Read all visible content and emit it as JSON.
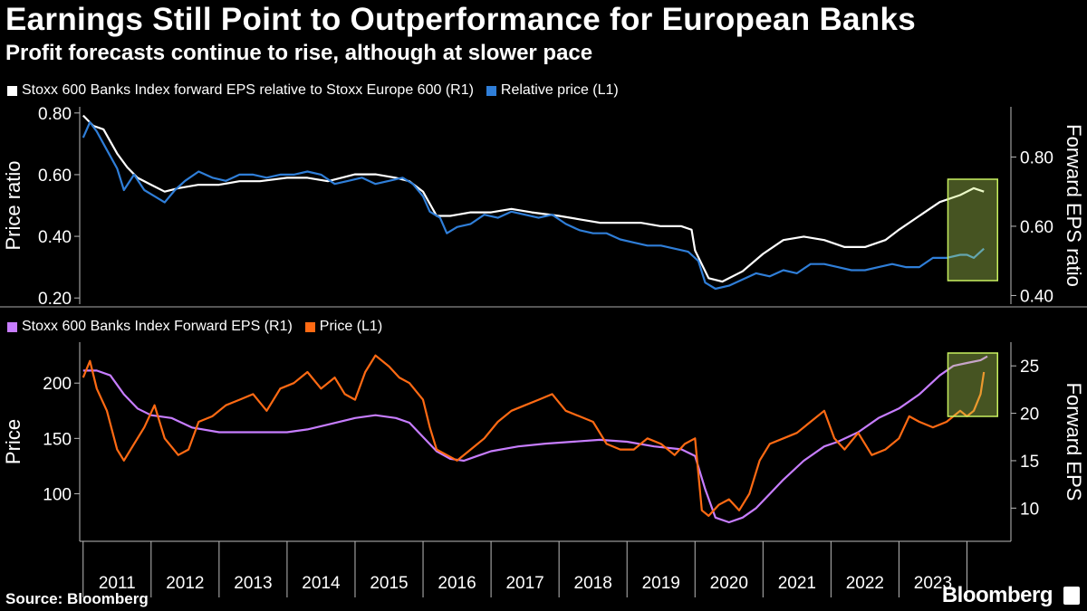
{
  "header": {
    "title": "Earnings Still Point to Outperformance for European Banks",
    "subtitle": "Profit forecasts continue to rise, although at slower pace"
  },
  "footer": {
    "source": "Source: Bloomberg",
    "logo": "Bloomberg"
  },
  "chart_data": [
    {
      "type": "line",
      "title": "",
      "legend_placement": "top-left",
      "left_axis": {
        "label": "Price ratio",
        "ticks": [
          0.2,
          0.4,
          0.6,
          0.8
        ],
        "tick_labels": [
          "0.20",
          "0.40",
          "0.60",
          "0.80"
        ],
        "range": [
          0.18,
          0.82
        ]
      },
      "right_axis": {
        "label": "Forward EPS ratio",
        "ticks": [
          0.4,
          0.6,
          0.8
        ],
        "tick_labels": [
          "0.40",
          "0.60",
          "0.80"
        ],
        "range": [
          0.375,
          0.945
        ]
      },
      "x_range": [
        2010.95,
        2024.5
      ],
      "series": [
        {
          "name": "Stoxx 600 Banks Index forward EPS relative to Stoxx Europe 600 (R1)",
          "axis": "right",
          "color": "#ffffff",
          "x": [
            2011.0,
            2011.15,
            2011.3,
            2011.5,
            2011.65,
            2011.8,
            2012.0,
            2012.2,
            2012.4,
            2012.7,
            2013.0,
            2013.3,
            2013.6,
            2014.0,
            2014.3,
            2014.6,
            2015.0,
            2015.3,
            2015.6,
            2015.8,
            2016.0,
            2016.2,
            2016.4,
            2016.7,
            2017.0,
            2017.3,
            2017.6,
            2018.0,
            2018.3,
            2018.6,
            2018.9,
            2019.2,
            2019.5,
            2019.8,
            2019.95,
            2020.0,
            2020.2,
            2020.4,
            2020.7,
            2021.0,
            2021.3,
            2021.6,
            2021.9,
            2022.2,
            2022.5,
            2022.8,
            2023.0,
            2023.3,
            2023.6,
            2023.9,
            2024.1,
            2024.25
          ],
          "y": [
            0.92,
            0.89,
            0.88,
            0.81,
            0.77,
            0.74,
            0.72,
            0.7,
            0.71,
            0.72,
            0.72,
            0.73,
            0.73,
            0.74,
            0.74,
            0.73,
            0.75,
            0.75,
            0.74,
            0.73,
            0.7,
            0.63,
            0.63,
            0.64,
            0.64,
            0.65,
            0.64,
            0.63,
            0.62,
            0.61,
            0.61,
            0.61,
            0.6,
            0.6,
            0.59,
            0.53,
            0.45,
            0.44,
            0.47,
            0.52,
            0.56,
            0.57,
            0.56,
            0.54,
            0.54,
            0.56,
            0.59,
            0.63,
            0.67,
            0.69,
            0.71,
            0.7
          ]
        },
        {
          "name": "Relative price (L1)",
          "axis": "left",
          "color": "#2f7ed8",
          "x": [
            2011.0,
            2011.1,
            2011.2,
            2011.35,
            2011.5,
            2011.6,
            2011.75,
            2011.9,
            2012.05,
            2012.2,
            2012.35,
            2012.5,
            2012.7,
            2012.9,
            2013.1,
            2013.3,
            2013.5,
            2013.7,
            2013.9,
            2014.1,
            2014.3,
            2014.5,
            2014.7,
            2014.9,
            2015.1,
            2015.3,
            2015.5,
            2015.7,
            2015.85,
            2016.0,
            2016.1,
            2016.25,
            2016.35,
            2016.5,
            2016.7,
            2016.9,
            2017.1,
            2017.3,
            2017.5,
            2017.7,
            2017.9,
            2018.1,
            2018.3,
            2018.5,
            2018.7,
            2018.9,
            2019.1,
            2019.3,
            2019.5,
            2019.7,
            2019.9,
            2020.05,
            2020.15,
            2020.3,
            2020.5,
            2020.7,
            2020.9,
            2021.1,
            2021.3,
            2021.5,
            2021.7,
            2021.9,
            2022.1,
            2022.3,
            2022.5,
            2022.7,
            2022.9,
            2023.1,
            2023.3,
            2023.5,
            2023.7,
            2023.9,
            2024.0,
            2024.1,
            2024.2,
            2024.25
          ],
          "y": [
            0.72,
            0.77,
            0.74,
            0.68,
            0.62,
            0.55,
            0.6,
            0.55,
            0.53,
            0.51,
            0.55,
            0.58,
            0.61,
            0.59,
            0.58,
            0.6,
            0.6,
            0.59,
            0.6,
            0.6,
            0.61,
            0.6,
            0.57,
            0.58,
            0.59,
            0.57,
            0.58,
            0.59,
            0.57,
            0.53,
            0.48,
            0.46,
            0.41,
            0.43,
            0.44,
            0.47,
            0.46,
            0.48,
            0.47,
            0.46,
            0.47,
            0.44,
            0.42,
            0.41,
            0.41,
            0.39,
            0.38,
            0.37,
            0.37,
            0.36,
            0.35,
            0.32,
            0.25,
            0.23,
            0.24,
            0.26,
            0.28,
            0.27,
            0.29,
            0.28,
            0.31,
            0.31,
            0.3,
            0.29,
            0.29,
            0.3,
            0.31,
            0.3,
            0.3,
            0.33,
            0.33,
            0.34,
            0.34,
            0.33,
            0.35,
            0.36
          ]
        }
      ],
      "highlight": {
        "x0": 2023.72,
        "x1": 2024.45,
        "color": "#c8f060"
      }
    },
    {
      "type": "line",
      "title": "",
      "legend_placement": "top-left",
      "left_axis": {
        "label": "Price",
        "ticks": [
          100,
          150,
          200
        ],
        "tick_labels": [
          "100",
          "150",
          "200"
        ],
        "range": [
          57,
          237
        ]
      },
      "right_axis": {
        "label": "Forward EPS",
        "ticks": [
          10,
          15,
          20,
          25
        ],
        "tick_labels": [
          "10",
          "15",
          "20",
          "25"
        ],
        "range": [
          6.5,
          27.5
        ]
      },
      "x_range": [
        2010.95,
        2024.5
      ],
      "x_ticks": [
        2011,
        2012,
        2013,
        2014,
        2015,
        2016,
        2017,
        2018,
        2019,
        2020,
        2021,
        2022,
        2023
      ],
      "x_tick_labels": [
        "2011",
        "2012",
        "2013",
        "2014",
        "2015",
        "2016",
        "2017",
        "2018",
        "2019",
        "2020",
        "2021",
        "2022",
        "2023"
      ],
      "series": [
        {
          "name": "Stoxx 600 Banks Index Forward EPS (R1)",
          "axis": "right",
          "color": "#c77dff",
          "x": [
            2011.0,
            2011.2,
            2011.4,
            2011.6,
            2011.8,
            2012.0,
            2012.3,
            2012.6,
            2013.0,
            2013.5,
            2014.0,
            2014.3,
            2014.6,
            2015.0,
            2015.3,
            2015.6,
            2015.8,
            2016.0,
            2016.2,
            2016.4,
            2016.6,
            2016.8,
            2017.0,
            2017.4,
            2017.8,
            2018.2,
            2018.6,
            2019.0,
            2019.4,
            2019.8,
            2020.0,
            2020.15,
            2020.3,
            2020.5,
            2020.7,
            2020.9,
            2021.1,
            2021.3,
            2021.6,
            2021.9,
            2022.1,
            2022.4,
            2022.7,
            2023.0,
            2023.3,
            2023.6,
            2023.8,
            2024.0,
            2024.2,
            2024.3
          ],
          "y": [
            24.5,
            24.5,
            24.0,
            22.0,
            20.5,
            19.8,
            19.5,
            18.5,
            18.0,
            18.0,
            18.0,
            18.3,
            18.8,
            19.5,
            19.8,
            19.5,
            19.0,
            17.5,
            16.0,
            15.2,
            15.0,
            15.5,
            16.0,
            16.5,
            16.8,
            17.0,
            17.2,
            17.0,
            16.5,
            16.2,
            15.5,
            12.0,
            9.0,
            8.5,
            9.0,
            10.0,
            11.5,
            13.0,
            15.0,
            16.5,
            17.0,
            18.0,
            19.5,
            20.5,
            22.0,
            24.0,
            25.0,
            25.3,
            25.6,
            26.0
          ]
        },
        {
          "name": "Price (L1)",
          "axis": "left",
          "color": "#ff6a13",
          "x": [
            2011.0,
            2011.1,
            2011.2,
            2011.35,
            2011.5,
            2011.6,
            2011.75,
            2011.9,
            2012.05,
            2012.2,
            2012.4,
            2012.55,
            2012.7,
            2012.9,
            2013.1,
            2013.3,
            2013.5,
            2013.7,
            2013.9,
            2014.1,
            2014.3,
            2014.5,
            2014.7,
            2014.85,
            2015.0,
            2015.15,
            2015.3,
            2015.5,
            2015.65,
            2015.8,
            2016.0,
            2016.1,
            2016.2,
            2016.35,
            2016.5,
            2016.7,
            2016.9,
            2017.1,
            2017.3,
            2017.5,
            2017.7,
            2017.9,
            2018.1,
            2018.3,
            2018.5,
            2018.7,
            2018.9,
            2019.1,
            2019.3,
            2019.5,
            2019.7,
            2019.85,
            2020.0,
            2020.1,
            2020.2,
            2020.35,
            2020.5,
            2020.65,
            2020.8,
            2020.95,
            2021.1,
            2021.3,
            2021.5,
            2021.7,
            2021.9,
            2022.05,
            2022.2,
            2022.4,
            2022.6,
            2022.8,
            2023.0,
            2023.15,
            2023.3,
            2023.5,
            2023.7,
            2023.9,
            2024.0,
            2024.1,
            2024.2,
            2024.25
          ],
          "y": [
            205,
            220,
            195,
            175,
            140,
            130,
            145,
            160,
            180,
            150,
            135,
            140,
            165,
            170,
            180,
            185,
            190,
            175,
            195,
            200,
            210,
            195,
            205,
            190,
            185,
            210,
            225,
            215,
            205,
            200,
            185,
            160,
            140,
            135,
            130,
            140,
            150,
            165,
            175,
            180,
            185,
            190,
            175,
            170,
            165,
            145,
            140,
            140,
            150,
            145,
            135,
            145,
            150,
            85,
            80,
            90,
            95,
            85,
            100,
            130,
            145,
            150,
            155,
            165,
            175,
            150,
            140,
            155,
            135,
            140,
            150,
            170,
            165,
            160,
            165,
            175,
            170,
            175,
            190,
            210
          ]
        }
      ],
      "highlight": {
        "x0": 2023.72,
        "x1": 2024.45,
        "color": "#c8f060"
      }
    }
  ]
}
